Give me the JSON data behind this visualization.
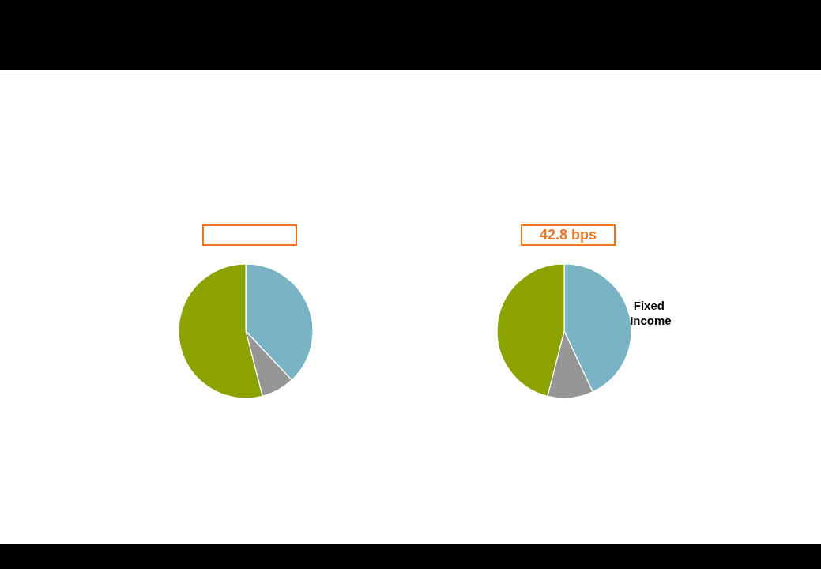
{
  "chart_data": [
    {
      "type": "pie",
      "categories": [
        null,
        null,
        null
      ],
      "values": [
        38,
        8,
        54
      ],
      "colors": [
        "#7ab3c4",
        "#969696",
        "#8ba200"
      ]
    },
    {
      "type": "pie",
      "title": "42.8 bps",
      "categories": [
        "Fixed Income",
        null,
        null
      ],
      "values": [
        43,
        11,
        46
      ],
      "colors": [
        "#7ab3c4",
        "#969696",
        "#8ba200"
      ]
    }
  ]
}
